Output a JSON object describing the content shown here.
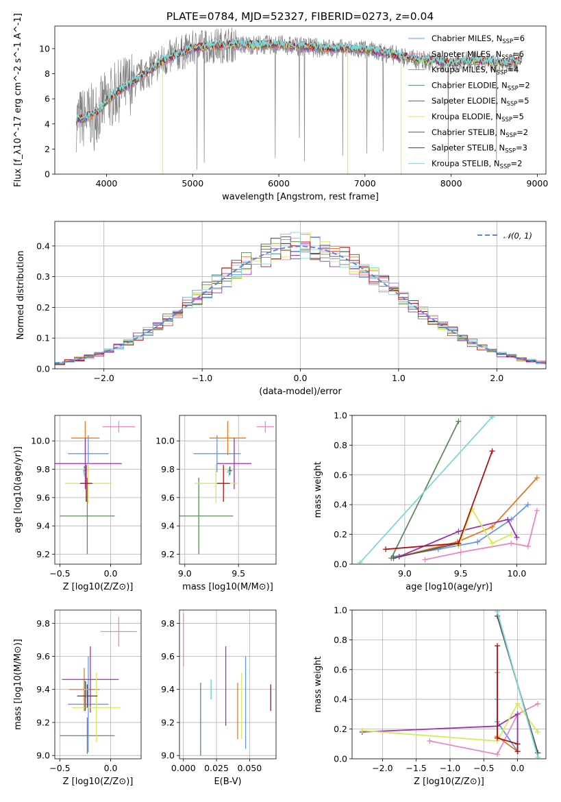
{
  "figure_title": "PLATE=0784, MJD=52327, FIBERID=0273, z=0.04",
  "colors": {
    "chabrier_miles": "#6495ed",
    "salpeter_miles": "#e887c1",
    "kroupa_miles": "#e07b1f",
    "chabrier_elodie": "#5c8a5c",
    "salpeter_elodie": "#9b2fb5",
    "kroupa_elodie": "#d6ea55",
    "chabrier_stelib": "#555555",
    "salpeter_stelib": "#b01010",
    "kroupa_stelib": "#7fd6d6",
    "data_spectrum": "#808080",
    "normal_curve": "#5b84e0"
  },
  "chart_data": [
    {
      "id": "spectrum",
      "type": "line",
      "xlabel": "wavelength [Angstrom, rest frame]",
      "ylabel": "Flux [f_λ10^-17 erg cm^-2 s^-1 A^-1]",
      "xlim": [
        3400,
        9100
      ],
      "ylim": [
        0,
        11.8
      ],
      "xticks": [
        4000,
        5000,
        6000,
        7000,
        8000,
        9000
      ],
      "yticks": [
        0,
        2,
        4,
        6,
        8,
        10
      ],
      "grid": false,
      "legend_position": "top-right",
      "legend": [
        "Chabrier MILES, N_SSP=6",
        "Salpeter MILES, N_SSP=6",
        "Kroupa MILES, N_SSP=4",
        "Chabrier ELODIE, N_SSP=2",
        "Salpeter ELODIE, N_SSP=5",
        "Kroupa ELODIE, N_SSP=5",
        "Chabrier STELIB, N_SSP=2",
        "Salpeter STELIB, N_SSP=3",
        "Kroupa STELIB, N_SSP=2"
      ],
      "continuum": {
        "x": [
          3650,
          3700,
          3800,
          3900,
          4000,
          4100,
          4200,
          4300,
          4400,
          4500,
          4600,
          4800,
          5000,
          5200,
          5400,
          5600,
          5800,
          6000,
          6200,
          6400,
          6600,
          6800,
          7000,
          7200,
          7400,
          7600,
          7800,
          8000,
          8200,
          8400,
          8600,
          8800
        ],
        "y": [
          4.3,
          4.4,
          4.6,
          5.0,
          5.8,
          6.4,
          6.9,
          7.3,
          7.8,
          8.3,
          8.8,
          9.5,
          10.0,
          10.2,
          10.3,
          10.3,
          10.3,
          10.3,
          10.2,
          10.1,
          10.0,
          10.0,
          9.9,
          9.7,
          9.4,
          9.1,
          9.0,
          8.8,
          9.0,
          8.9,
          8.8,
          9.0
        ]
      },
      "model_range": {
        "Chabrier MILES, N_SSP=6": [
          3650,
          7420
        ],
        "Kroupa MILES, N_SSP=4": [
          3650,
          7420
        ],
        "Salpeter MILES, N_SSP=6": [
          3650,
          7420
        ]
      },
      "dips": [
        {
          "x": 4650,
          "y": 0
        },
        {
          "x": 6800,
          "y": 0
        },
        {
          "x": 7420,
          "y": 0
        }
      ]
    },
    {
      "id": "residual_hist",
      "type": "histogram",
      "xlabel": "(data-model)/error",
      "ylabel": "Normed distribution",
      "xlim": [
        -2.5,
        2.5
      ],
      "ylim": [
        0,
        0.48
      ],
      "xticks": [
        -2,
        -1,
        0,
        1,
        2
      ],
      "yticks": [
        0.0,
        0.1,
        0.2,
        0.3,
        0.4
      ],
      "grid": true,
      "legend_position": "top-right",
      "legend": [
        "𝒩(0, 1)"
      ],
      "bin_width": 0.1,
      "normal_curve": {
        "mean": 0,
        "sigma": 1
      }
    },
    {
      "id": "age_vs_Z",
      "type": "errorbar",
      "xlabel": "Z [log10(Z/Z⊙)]",
      "ylabel": "age  [log10(age/yr)]",
      "xlim": [
        -0.55,
        0.3
      ],
      "ylim": [
        9.13,
        10.18
      ],
      "xticks": [
        -0.5,
        0.0
      ],
      "yticks": [
        9.2,
        9.4,
        9.6,
        9.8,
        10.0
      ],
      "grid": true,
      "points": [
        {
          "series": "Chabrier MILES",
          "x": -0.22,
          "xerr": 0.2,
          "y": 9.91,
          "yerr": 0.13
        },
        {
          "series": "Salpeter MILES",
          "x": 0.08,
          "xerr": 0.16,
          "y": 10.1,
          "yerr": 0.04
        },
        {
          "series": "Kroupa MILES",
          "x": -0.25,
          "xerr": 0.14,
          "y": 10.02,
          "yerr": 0.12
        },
        {
          "series": "Chabrier ELODIE",
          "x": -0.23,
          "xerr": 0.27,
          "y": 9.47,
          "yerr": 0.27
        },
        {
          "series": "Salpeter ELODIE",
          "x": -0.25,
          "xerr": 0.36,
          "y": 9.84,
          "yerr": 0.18
        },
        {
          "series": "Kroupa ELODIE",
          "x": -0.22,
          "xerr": 0.23,
          "y": 9.7,
          "yerr": 0.14
        },
        {
          "series": "Chabrier STELIB",
          "x": -0.26,
          "xerr": 0.01,
          "y": 9.79,
          "yerr": 0.03
        },
        {
          "series": "Salpeter STELIB",
          "x": -0.24,
          "xerr": 0.06,
          "y": 9.7,
          "yerr": 0.13
        },
        {
          "series": "Kroupa STELIB",
          "x": -0.26,
          "xerr": 0.01,
          "y": 9.78,
          "yerr": 0.03
        }
      ]
    },
    {
      "id": "age_vs_mass",
      "type": "errorbar",
      "xlabel": "mass [log10(M/M⊙)]",
      "ylabel": "",
      "xlim": [
        8.95,
        9.85
      ],
      "ylim": [
        9.13,
        10.18
      ],
      "xticks": [
        9.0,
        9.5
      ],
      "yticks": [
        9.2,
        9.4,
        9.6,
        9.8,
        10.0
      ],
      "grid": true,
      "points": [
        {
          "series": "Chabrier MILES",
          "x": 9.3,
          "xerr": 0.22,
          "y": 9.91,
          "yerr": 0.13
        },
        {
          "series": "Salpeter MILES",
          "x": 9.75,
          "xerr": 0.08,
          "y": 10.1,
          "yerr": 0.04
        },
        {
          "series": "Kroupa MILES",
          "x": 9.4,
          "xerr": 0.17,
          "y": 10.02,
          "yerr": 0.12
        },
        {
          "series": "Chabrier ELODIE",
          "x": 9.13,
          "xerr": 0.32,
          "y": 9.47,
          "yerr": 0.27
        },
        {
          "series": "Salpeter ELODIE",
          "x": 9.46,
          "xerr": 0.16,
          "y": 9.84,
          "yerr": 0.18
        },
        {
          "series": "Kroupa ELODIE",
          "x": 9.29,
          "xerr": 0.2,
          "y": 9.7,
          "yerr": 0.14
        },
        {
          "series": "Chabrier STELIB",
          "x": 9.42,
          "xerr": 0.02,
          "y": 9.79,
          "yerr": 0.03
        },
        {
          "series": "Salpeter STELIB",
          "x": 9.36,
          "xerr": 0.06,
          "y": 9.7,
          "yerr": 0.13
        },
        {
          "series": "Kroupa STELIB",
          "x": 9.41,
          "xerr": 0.02,
          "y": 9.78,
          "yerr": 0.03
        }
      ]
    },
    {
      "id": "massweight_vs_age",
      "type": "line",
      "xlabel": "age  [log10(age/yr)]",
      "ylabel": "mass weight",
      "xlim": [
        8.53,
        10.26
      ],
      "ylim": [
        0,
        1.0
      ],
      "xticks": [
        9.0,
        9.5,
        10.0
      ],
      "yticks": [
        0.0,
        0.2,
        0.4,
        0.6,
        0.8,
        1.0
      ],
      "grid": true,
      "series": [
        {
          "name": "Chabrier MILES",
          "x": [
            8.9,
            9.3,
            9.65,
            9.95,
            10.1
          ],
          "y": [
            0.05,
            0.1,
            0.15,
            0.3,
            0.4
          ]
        },
        {
          "name": "Salpeter MILES",
          "x": [
            9.18,
            9.5,
            9.95,
            10.1,
            10.18
          ],
          "y": [
            0.03,
            0.08,
            0.14,
            0.12,
            0.36
          ]
        },
        {
          "name": "Kroupa MILES",
          "x": [
            8.95,
            9.47,
            9.78,
            10.18
          ],
          "y": [
            0.05,
            0.15,
            0.25,
            0.58
          ]
        },
        {
          "name": "Chabrier ELODIE",
          "x": [
            8.88,
            9.48
          ],
          "y": [
            0.04,
            0.96
          ]
        },
        {
          "name": "Salpeter ELODIE",
          "x": [
            8.95,
            9.48,
            9.92,
            10.0
          ],
          "y": [
            0.05,
            0.22,
            0.3,
            0.18
          ]
        },
        {
          "name": "Kroupa ELODIE",
          "x": [
            9.48,
            9.6,
            9.78,
            9.95
          ],
          "y": [
            0.12,
            0.37,
            0.14,
            0.2
          ]
        },
        {
          "name": "Chabrier STELIB",
          "x": [
            8.9,
            9.48
          ],
          "y": [
            0.04,
            0.14
          ]
        },
        {
          "name": "Salpeter STELIB",
          "x": [
            8.83,
            9.48,
            9.78
          ],
          "y": [
            0.1,
            0.14,
            0.76
          ]
        },
        {
          "name": "Kroupa STELIB",
          "x": [
            8.6,
            9.78
          ],
          "y": [
            0.01,
            0.99
          ]
        }
      ]
    },
    {
      "id": "mass_vs_Z",
      "type": "errorbar",
      "xlabel": "Z [log10(Z/Z⊙)]",
      "ylabel": "mass [log10(M/M⊙)]",
      "xlim": [
        -0.55,
        0.3
      ],
      "ylim": [
        8.98,
        9.88
      ],
      "xticks": [
        -0.5,
        0.0
      ],
      "yticks": [
        9.0,
        9.2,
        9.4,
        9.6,
        9.8
      ],
      "grid": true,
      "points": [
        {
          "series": "Chabrier MILES",
          "x": -0.22,
          "xerr": 0.2,
          "y": 9.31,
          "yerr": 0.29
        },
        {
          "series": "Salpeter MILES",
          "x": 0.08,
          "xerr": 0.18,
          "y": 9.75,
          "yerr": 0.09
        },
        {
          "series": "Kroupa MILES",
          "x": -0.26,
          "xerr": 0.15,
          "y": 9.4,
          "yerr": 0.13
        },
        {
          "series": "Chabrier ELODIE",
          "x": -0.23,
          "xerr": 0.27,
          "y": 9.12,
          "yerr": 0.11
        },
        {
          "series": "Salpeter ELODIE",
          "x": -0.2,
          "xerr": 0.28,
          "y": 9.46,
          "yerr": 0.2
        },
        {
          "series": "Kroupa ELODIE",
          "x": -0.14,
          "xerr": 0.24,
          "y": 9.29,
          "yerr": 0.21
        },
        {
          "series": "Chabrier STELIB",
          "x": -0.25,
          "xerr": 0.02,
          "y": 9.36,
          "yerr": 0.09
        },
        {
          "series": "Salpeter STELIB",
          "x": -0.23,
          "xerr": 0.1,
          "y": 9.36,
          "yerr": 0.07
        },
        {
          "series": "Kroupa STELIB",
          "x": -0.24,
          "xerr": 0.02,
          "y": 9.4,
          "yerr": 0.05
        }
      ]
    },
    {
      "id": "mass_vs_ebv",
      "type": "errorbar",
      "xlabel": "E(B-V)",
      "ylabel": "",
      "xlim": [
        -0.003,
        0.07
      ],
      "ylim": [
        8.98,
        9.88
      ],
      "xticks": [
        0.0,
        0.025,
        0.05
      ],
      "xticklabels": [
        "0.000",
        "0.025",
        "0.050"
      ],
      "yticks": [
        9.0,
        9.2,
        9.4,
        9.6,
        9.8
      ],
      "grid": true,
      "points": [
        {
          "series": "Chabrier MILES",
          "x": 0.047,
          "xerr": 0,
          "y": 9.32,
          "yerr": 0.28
        },
        {
          "series": "Salpeter MILES",
          "x": 0.0,
          "xerr": 0,
          "y": 9.7,
          "yerr": 0.16
        },
        {
          "series": "Kroupa MILES",
          "x": 0.041,
          "xerr": 0,
          "y": 9.27,
          "yerr": 0.17
        },
        {
          "series": "Chabrier ELODIE",
          "x": 0.013,
          "xerr": 0,
          "y": 9.22,
          "yerr": 0.22
        },
        {
          "series": "Salpeter ELODIE",
          "x": 0.032,
          "xerr": 0,
          "y": 9.42,
          "yerr": 0.24
        },
        {
          "series": "Kroupa ELODIE",
          "x": 0.044,
          "xerr": 0,
          "y": 9.3,
          "yerr": 0.2
        },
        {
          "series": "Chabrier STELIB",
          "x": 0.021,
          "xerr": 0,
          "y": 9.4,
          "yerr": 0.06
        },
        {
          "series": "Salpeter STELIB",
          "x": 0.066,
          "xerr": 0,
          "y": 9.35,
          "yerr": 0.08
        },
        {
          "series": "Kroupa STELIB",
          "x": 0.021,
          "xerr": 0,
          "y": 9.4,
          "yerr": 0.06
        }
      ]
    },
    {
      "id": "massweight_vs_Z",
      "type": "line",
      "xlabel": "Z [log10(Z/Z⊙)]",
      "ylabel": "mass weight",
      "xlim": [
        -2.45,
        0.42
      ],
      "ylim": [
        0,
        1.0
      ],
      "xticks": [
        -2.0,
        -1.5,
        -1.0,
        -0.5,
        0.0
      ],
      "yticks": [
        0.0,
        0.2,
        0.4,
        0.6,
        0.8,
        1.0
      ],
      "grid": true,
      "series": [
        {
          "name": "Chabrier MILES",
          "x": [
            -0.3,
            -0.3,
            0.0,
            0.0
          ],
          "y": [
            0.4,
            0.25,
            0.05,
            0.3
          ]
        },
        {
          "name": "Salpeter MILES",
          "x": [
            -1.3,
            -0.3,
            0.0,
            0.3
          ],
          "y": [
            0.12,
            0.03,
            0.3,
            0.37
          ]
        },
        {
          "name": "Kroupa MILES",
          "x": [
            -0.3,
            -0.3,
            0.0
          ],
          "y": [
            0.58,
            0.15,
            0.05
          ]
        },
        {
          "name": "Chabrier ELODIE",
          "x": [
            -0.3,
            0.3
          ],
          "y": [
            0.96,
            0.04
          ]
        },
        {
          "name": "Salpeter ELODIE",
          "x": [
            -2.3,
            -0.3,
            0.0,
            0.0
          ],
          "y": [
            0.18,
            0.22,
            0.3,
            0.05
          ]
        },
        {
          "name": "Kroupa ELODIE",
          "x": [
            -2.3,
            -0.3,
            0.0,
            0.3
          ],
          "y": [
            0.19,
            0.12,
            0.37,
            0.18
          ]
        },
        {
          "name": "Chabrier STELIB",
          "x": [
            -0.3,
            0.3
          ],
          "y": [
            0.96,
            0.04
          ]
        },
        {
          "name": "Salpeter STELIB",
          "x": [
            -0.3,
            -0.3,
            0.0,
            0.0
          ],
          "y": [
            0.76,
            0.14,
            0.1,
            0.05
          ]
        },
        {
          "name": "Kroupa STELIB",
          "x": [
            -0.3,
            0.3
          ],
          "y": [
            0.99,
            0.01
          ]
        }
      ]
    }
  ]
}
